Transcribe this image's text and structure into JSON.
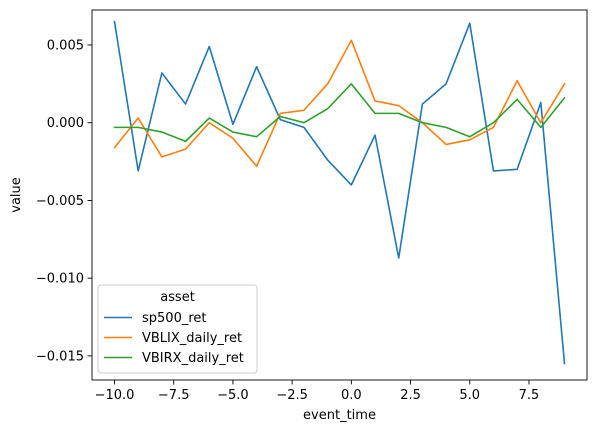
{
  "chart_data": {
    "type": "line",
    "title": "",
    "xlabel": "event_time",
    "ylabel": "value",
    "xlim": [
      -10.95,
      9.95
    ],
    "ylim": [
      -0.01655,
      0.00725
    ],
    "x_ticks": [
      -10.0,
      -7.5,
      -5.0,
      -2.5,
      0.0,
      2.5,
      5.0,
      7.5
    ],
    "x_tick_labels": [
      "−10.0",
      "−7.5",
      "−5.0",
      "−2.5",
      "0.0",
      "2.5",
      "5.0",
      "7.5"
    ],
    "y_ticks": [
      0.005,
      0.0,
      -0.005,
      -0.01,
      -0.015
    ],
    "y_tick_labels": [
      "0.005",
      "0.000",
      "−0.005",
      "−0.010",
      "−0.015"
    ],
    "grid": false,
    "legend": {
      "title": "asset",
      "placement": "lower-left"
    },
    "x": [
      -10,
      -9,
      -8,
      -7,
      -6,
      -5,
      -4,
      -3,
      -2,
      -1,
      0,
      1,
      2,
      3,
      4,
      5,
      6,
      7,
      8,
      9
    ],
    "series": [
      {
        "name": "sp500_ret",
        "color": "#1f77b4",
        "values": [
          0.0065,
          -0.0031,
          0.0032,
          0.0012,
          0.0049,
          -0.0001,
          0.0036,
          0.0002,
          -0.0003,
          -0.0024,
          -0.004,
          -0.0008,
          -0.0087,
          0.0012,
          0.0025,
          0.0064,
          -0.0031,
          -0.003,
          0.0013,
          -0.0155
        ]
      },
      {
        "name": "VBLIX_daily_ret",
        "color": "#ff7f0e",
        "values": [
          -0.0016,
          0.0003,
          -0.0022,
          -0.0017,
          0.0,
          -0.001,
          -0.0028,
          0.0006,
          0.0008,
          0.0025,
          0.0053,
          0.0014,
          0.0011,
          0.0,
          -0.0014,
          -0.0011,
          -0.0003,
          0.0027,
          0.0,
          0.0025
        ]
      },
      {
        "name": "VBIRX_daily_ret",
        "color": "#2ca02c",
        "values": [
          -0.0003,
          -0.0003,
          -0.0006,
          -0.0012,
          0.0003,
          -0.0006,
          -0.0009,
          0.0004,
          0.0,
          0.0009,
          0.0025,
          0.0006,
          0.0006,
          0.0,
          -0.0003,
          -0.0009,
          0.0,
          0.0015,
          -0.0003,
          0.0016
        ]
      }
    ]
  }
}
